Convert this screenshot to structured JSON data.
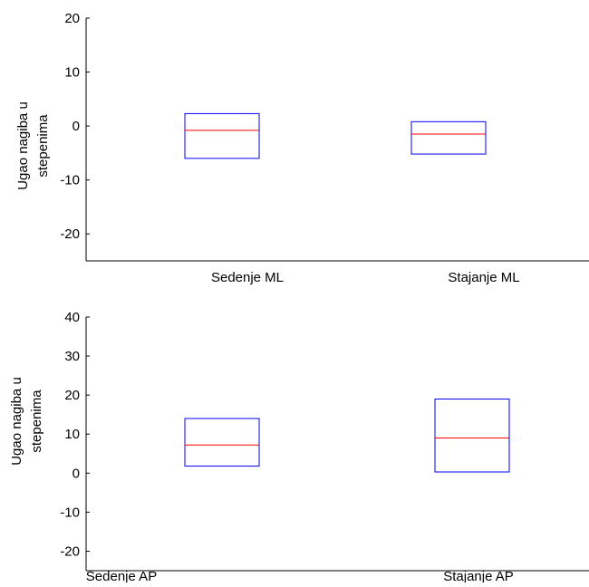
{
  "chart_data": [
    {
      "type": "box",
      "ylim": [
        -25,
        20
      ],
      "yticks": [
        "-20",
        "-10",
        "0",
        "10",
        "20"
      ],
      "ylabel_lines": [
        "Ugao nagiba u",
        "stepenima"
      ],
      "categories": [
        "Sedenje ML",
        "Stajanje ML"
      ],
      "boxes": [
        {
          "category": "Sedenje ML",
          "q1": -6,
          "median": -0.8,
          "q3": 2.3
        },
        {
          "category": "Stajanje ML",
          "q1": -5.2,
          "median": -1.5,
          "q3": 0.8
        }
      ],
      "colors": {
        "box": "#0000ff",
        "median": "#ff0000",
        "axis": "#000000"
      }
    },
    {
      "type": "box",
      "ylim": [
        -25,
        40
      ],
      "yticks": [
        "-20",
        "-10",
        "0",
        "10",
        "20",
        "30",
        "40"
      ],
      "ylabel_lines": [
        "Ugao nagiba u",
        "stepenima"
      ],
      "categories": [
        "Sedenje AP",
        "Stajanje AP"
      ],
      "boxes": [
        {
          "category": "Sedenje AP",
          "q1": 1.8,
          "median": 7.2,
          "q3": 14
        },
        {
          "category": "Stajanje AP",
          "q1": 0.3,
          "median": 9,
          "q3": 19
        }
      ],
      "colors": {
        "box": "#0000ff",
        "median": "#ff0000",
        "axis": "#000000"
      }
    }
  ]
}
